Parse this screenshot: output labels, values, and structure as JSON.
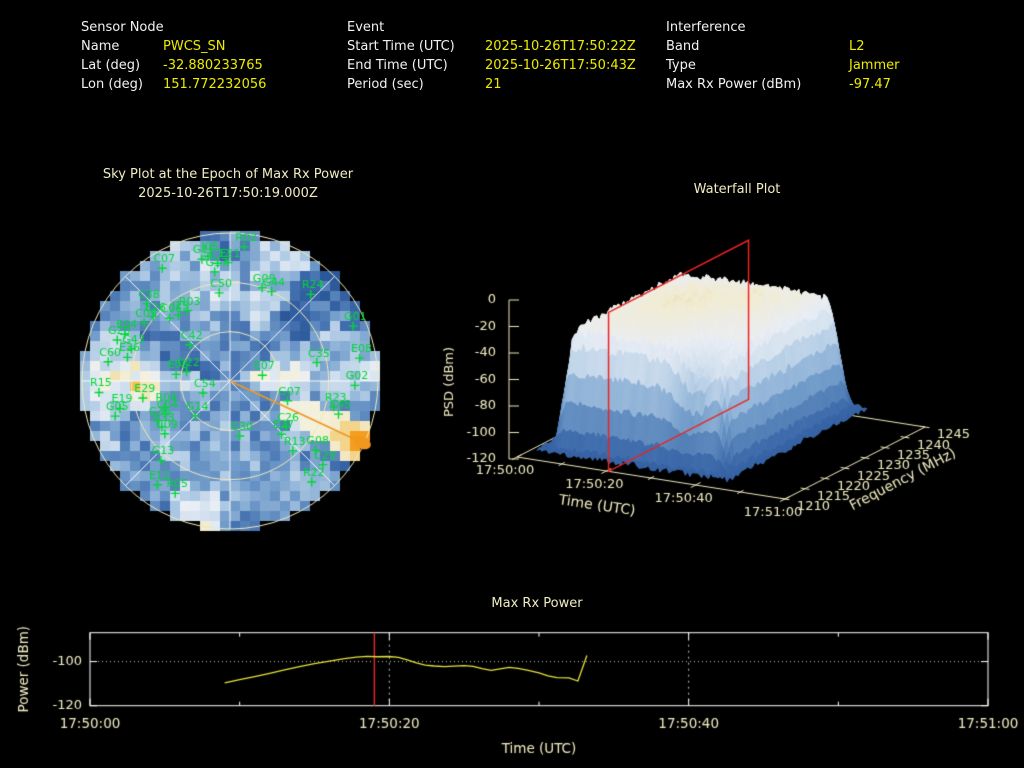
{
  "header": {
    "sensor": {
      "title": "Sensor Node",
      "name_label": "Name",
      "name": "PWCS_SN",
      "lat_label": "Lat (deg)",
      "lat": "-32.880233765",
      "lon_label": "Lon (deg)",
      "lon": "151.772232056"
    },
    "event": {
      "title": "Event",
      "start_label": "Start Time (UTC)",
      "start": "2025-10-26T17:50:22Z",
      "end_label": "End Time (UTC)",
      "end": "2025-10-26T17:50:43Z",
      "period_label": "Period (sec)",
      "period": "21"
    },
    "interference": {
      "title": "Interference",
      "band_label": "Band",
      "band": "L2",
      "type_label": "Type",
      "type": "Jammer",
      "power_label": "Max Rx Power (dBm)",
      "power": "-97.47"
    }
  },
  "colors": {
    "background": "#000000",
    "header_label": "#f2f2f2",
    "header_value": "#ebeb00",
    "plot_text": "#f0ecc2",
    "frame": "#ffffff",
    "satellite_green": "#00d838",
    "interference_orange": "#f0981e",
    "epoch_red": "#e02525",
    "series_yellow": "#e6e33c"
  },
  "chart_data": [
    {
      "type": "heatmap",
      "name": "sky-plot",
      "title": "Sky Plot at the Epoch of Max Rx Power",
      "subtitle": "2025-10-26T17:50:19.000Z",
      "projection": "polar-sky",
      "elevation_rings_deg": [
        0,
        30,
        60
      ],
      "azimuth_spokes_every_deg": 45,
      "interference": {
        "azimuth_deg": 115,
        "elevation_deg": 0,
        "color": "#f0981e"
      },
      "colormap": [
        "#24508f",
        "#3a67a9",
        "#6f9ac9",
        "#a9c6e2",
        "#d3e1ef",
        "#eaeef5",
        "#f4f0da",
        "#f0dfa8",
        "#f6b93f",
        "#f59d1e"
      ],
      "light_sectors": [
        {
          "az": [
            10,
            34
          ],
          "el": [
            0,
            55
          ],
          "boost": 0.3
        },
        {
          "az": [
            252,
            296
          ],
          "el": [
            5,
            45
          ],
          "boost": 0.22
        },
        {
          "az": [
            185,
            207
          ],
          "el": [
            0,
            22
          ],
          "boost": 0.3
        },
        {
          "az": [
            344,
            366
          ],
          "el": [
            15,
            48
          ],
          "boost": 0.2
        },
        {
          "az": [
            75,
            105
          ],
          "el": [
            40,
            75
          ],
          "boost": 0.18
        },
        {
          "az": [
            118,
            134
          ],
          "el": [
            28,
            45
          ],
          "boost": 0.12
        }
      ],
      "satellites": [
        {
          "id": "R02",
          "az": 6,
          "el": 8
        },
        {
          "id": "J05",
          "az": 350,
          "el": 13
        },
        {
          "id": "G15",
          "az": 347,
          "el": 14
        },
        {
          "id": "C32",
          "az": 354,
          "el": 18
        },
        {
          "id": "E21",
          "az": 359,
          "el": 18
        },
        {
          "id": "C07",
          "az": 329,
          "el": 10
        },
        {
          "id": "G17",
          "az": 352,
          "el": 23
        },
        {
          "id": "C50",
          "az": 353,
          "el": 36
        },
        {
          "id": "G09",
          "az": 19,
          "el": 30
        },
        {
          "id": "G44",
          "az": 25,
          "el": 30
        },
        {
          "id": "R24",
          "az": 43,
          "el": 18
        },
        {
          "id": "G01",
          "az": 66,
          "el": 8
        },
        {
          "id": "C38",
          "az": 313,
          "el": 21
        },
        {
          "id": "E26",
          "az": 310,
          "el": 29
        },
        {
          "id": "C05",
          "az": 304,
          "el": 27
        },
        {
          "id": "C06",
          "az": 316,
          "el": 37
        },
        {
          "id": "J19",
          "az": 322,
          "el": 39
        },
        {
          "id": "R03",
          "az": 329,
          "el": 40
        },
        {
          "id": "C42",
          "az": 312,
          "el": 57
        },
        {
          "id": "G43",
          "az": 288,
          "el": 27
        },
        {
          "id": "G20",
          "az": 290,
          "el": 17
        },
        {
          "id": "E04",
          "az": 294,
          "el": 20
        },
        {
          "id": "C60",
          "az": 279,
          "el": 15
        },
        {
          "id": "E36",
          "az": 283,
          "el": 26
        },
        {
          "id": "G22",
          "az": 282,
          "el": 63
        },
        {
          "id": "E03",
          "az": 277,
          "el": 57
        },
        {
          "id": "R15",
          "az": 265,
          "el": 10
        },
        {
          "id": "C54",
          "az": 246,
          "el": 72
        },
        {
          "id": "G14",
          "az": 225,
          "el": 60
        },
        {
          "id": "E29",
          "az": 259,
          "el": 36
        },
        {
          "id": "G05",
          "az": 253,
          "el": 17
        },
        {
          "id": "E19",
          "az": 256,
          "el": 21
        },
        {
          "id": "C09",
          "az": 231,
          "el": 39
        },
        {
          "id": "C33",
          "az": 236,
          "el": 40
        },
        {
          "id": "G36",
          "az": 241,
          "el": 40
        },
        {
          "id": "R04",
          "az": 248,
          "el": 47
        },
        {
          "id": "C04",
          "az": 243,
          "el": 46
        },
        {
          "id": "G13",
          "az": 221,
          "el": 26
        },
        {
          "id": "E12",
          "az": 215,
          "el": 13
        },
        {
          "id": "R05",
          "az": 206,
          "el": 14
        },
        {
          "id": "G30",
          "az": 170,
          "el": 56
        },
        {
          "id": "C26",
          "az": 129,
          "el": 46
        },
        {
          "id": "E27",
          "az": 136,
          "el": 45
        },
        {
          "id": "E07",
          "az": 80,
          "el": 70
        },
        {
          "id": "G07",
          "az": 109,
          "el": 53
        },
        {
          "id": "C35",
          "az": 78,
          "el": 36
        },
        {
          "id": "E08",
          "az": 80,
          "el": 10
        },
        {
          "id": "G02",
          "az": 92,
          "el": 14
        },
        {
          "id": "R23",
          "az": 104,
          "el": 25
        },
        {
          "id": "C45",
          "az": 107,
          "el": 21
        },
        {
          "id": "R13",
          "az": 138,
          "el": 33
        },
        {
          "id": "G08",
          "az": 129,
          "el": 23
        },
        {
          "id": "C29",
          "az": 132,
          "el": 14
        },
        {
          "id": "R22",
          "az": 141,
          "el": 11
        }
      ]
    },
    {
      "type": "surface",
      "name": "waterfall-plot",
      "title": "Waterfall Plot",
      "xlabel": "Time (UTC)",
      "ylabel": "Frequency (MHz)",
      "zlabel": "PSD (dBm)",
      "x_ticks": [
        {
          "sec": 0,
          "label": "17:50:00"
        },
        {
          "sec": 20,
          "label": "17:50:20"
        },
        {
          "sec": 40,
          "label": "17:50:40"
        },
        {
          "sec": 60,
          "label": "17:51:00"
        }
      ],
      "x_minor_ticks_sec": [
        10,
        30,
        50
      ],
      "y_ticks": [
        1210,
        1215,
        1220,
        1225,
        1230,
        1235,
        1240,
        1245
      ],
      "z_ticks": [
        0,
        -20,
        -40,
        -60,
        -80,
        -100,
        -120
      ],
      "xlim_sec": [
        0,
        60
      ],
      "ylim_mhz": [
        1210,
        1245
      ],
      "zlim": [
        -120,
        0
      ],
      "slice_plane": {
        "time_label": "17:50:19",
        "time_sec": 19,
        "color": "#ee2222"
      },
      "signal": {
        "t_on_sec": 6,
        "t_off_sec": 46,
        "f_low_mhz": 1213,
        "f_high_mhz": 1243,
        "plateau_dbm": -26,
        "peak_dbm": -14,
        "floor_dbm": -112
      },
      "colormap": [
        "#24508f",
        "#3a67a9",
        "#6f9ac9",
        "#a9c6e2",
        "#d3e1ef",
        "#eaeef5",
        "#f2ecd2",
        "#e8d7a4"
      ]
    },
    {
      "type": "line",
      "name": "power-plot",
      "title": "Max Rx Power",
      "xlabel": "Time (UTC)",
      "ylabel": "Power (dBm)",
      "x_ticks": [
        {
          "sec": 0,
          "label": "17:50:00"
        },
        {
          "sec": 20,
          "label": "17:50:20"
        },
        {
          "sec": 40,
          "label": "17:50:40"
        },
        {
          "sec": 60,
          "label": "17:51:00"
        }
      ],
      "x_minor_ticks_sec": [
        10,
        30,
        50
      ],
      "y_ticks": [
        -100,
        -120
      ],
      "ylim": [
        -120,
        -86.9
      ],
      "xlim_sec": [
        0,
        60
      ],
      "grid": {
        "x_sec": [
          20,
          40
        ],
        "y": [
          -100
        ]
      },
      "epoch_line": {
        "time_sec": 19,
        "color": "#e02525"
      },
      "series": [
        {
          "name": "max_rx_power_dbm",
          "color": "#e6e33c",
          "points": [
            [
              9,
              -109.6
            ],
            [
              10,
              -108.2
            ],
            [
              11,
              -106.8
            ],
            [
              12,
              -105.3
            ],
            [
              13,
              -103.8
            ],
            [
              14,
              -102.3
            ],
            [
              15,
              -100.9
            ],
            [
              16,
              -99.8
            ],
            [
              17,
              -98.7
            ],
            [
              17.8,
              -98.0
            ],
            [
              18.5,
              -97.6
            ],
            [
              19.2,
              -97.8
            ],
            [
              20,
              -97.7
            ],
            [
              20.6,
              -98.1
            ],
            [
              21.2,
              -99.2
            ],
            [
              21.8,
              -100.6
            ],
            [
              22.4,
              -101.6
            ],
            [
              23,
              -102.0
            ],
            [
              23.7,
              -102.3
            ],
            [
              24.3,
              -102.1
            ],
            [
              25,
              -101.8
            ],
            [
              25.6,
              -102.2
            ],
            [
              26.2,
              -103.2
            ],
            [
              26.8,
              -104.0
            ],
            [
              27.4,
              -103.3
            ],
            [
              28,
              -102.6
            ],
            [
              28.6,
              -103.1
            ],
            [
              29.2,
              -103.9
            ],
            [
              30,
              -105.1
            ],
            [
              30.6,
              -106.5
            ],
            [
              31.2,
              -107.3
            ],
            [
              32,
              -107.4
            ],
            [
              32.6,
              -108.8
            ],
            [
              33.2,
              -97.2
            ]
          ]
        }
      ]
    }
  ]
}
